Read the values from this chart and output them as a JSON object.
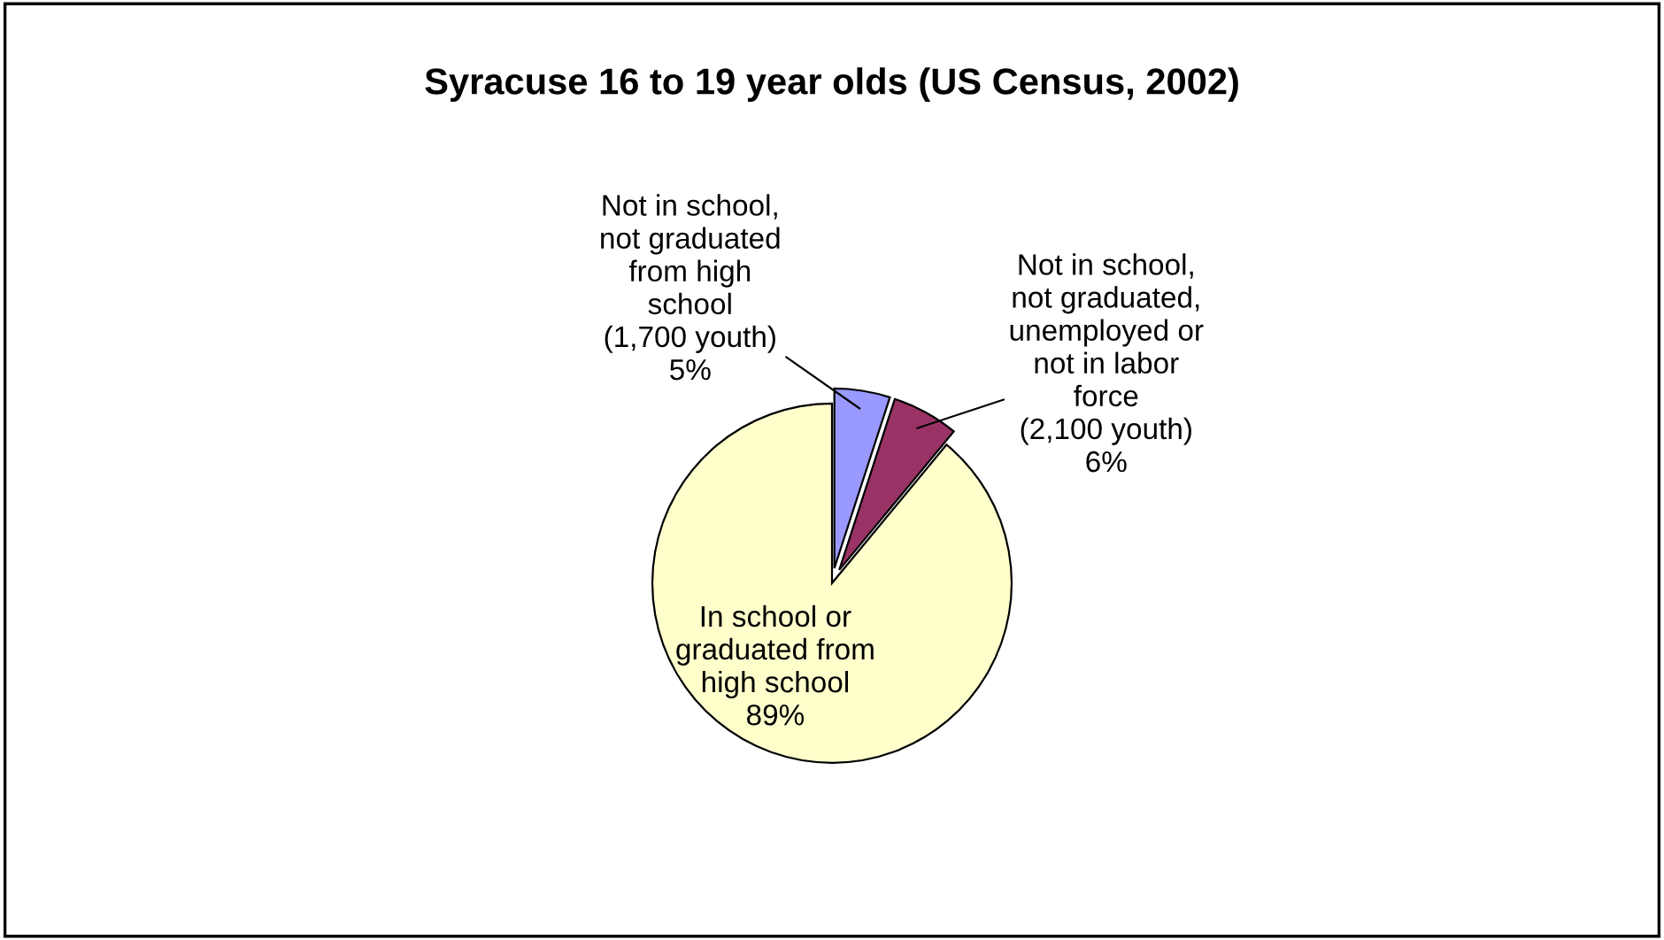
{
  "chart_data": {
    "type": "pie",
    "title": "Syracuse 16 to 19 year olds (US Census, 2002)",
    "categories": [
      "Not in school,\nnot graduated\nfrom high\nschool\n(1,700 youth)",
      "Not in school,\nnot graduated,\nunemployed or\nnot in labor\nforce\n(2,100 youth)",
      "In school or\ngraduated from\nhigh school"
    ],
    "values": [
      5,
      6,
      89
    ],
    "value_labels": [
      "5%",
      "6%",
      "89%"
    ],
    "colors": [
      "#9999ff",
      "#993366",
      "#ffffcc"
    ]
  }
}
